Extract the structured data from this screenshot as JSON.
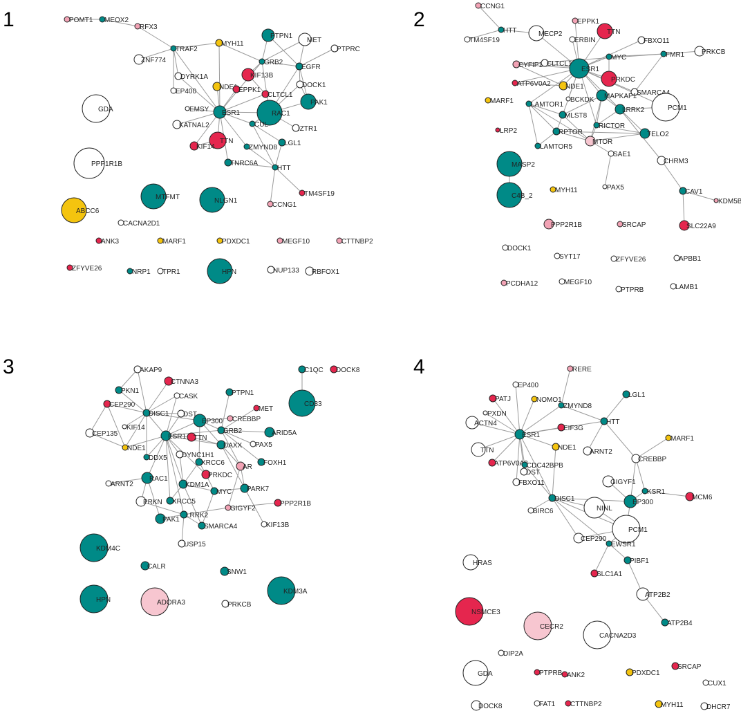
{
  "colors": {
    "teal": "#008a87",
    "red": "#e5264e",
    "pink": "#f2a3b5",
    "lightpink": "#f7c6d0",
    "yellow": "#f4c40f",
    "white": "#ffffff"
  },
  "panels": [
    {
      "number": "1",
      "nodes": [
        {
          "id": "POMT1",
          "c": "pink"
        },
        {
          "id": "MEOX2",
          "c": "teal"
        },
        {
          "id": "RFX3",
          "c": "pink"
        },
        {
          "id": "TRAF2",
          "c": "teal"
        },
        {
          "id": "MYH11",
          "c": "yellow"
        },
        {
          "id": "PTPN1",
          "c": "teal"
        },
        {
          "id": "MET",
          "c": "white"
        },
        {
          "id": "PTPRC",
          "c": "white"
        },
        {
          "id": "ZNF774",
          "c": "white"
        },
        {
          "id": "GRB2",
          "c": "teal"
        },
        {
          "id": "EGFR",
          "c": "teal"
        },
        {
          "id": "DYRK1A",
          "c": "white"
        },
        {
          "id": "KIF13B",
          "c": "red"
        },
        {
          "id": "DOCK1",
          "c": "white"
        },
        {
          "id": "NDE1",
          "c": "yellow"
        },
        {
          "id": "EPPK1",
          "c": "red"
        },
        {
          "id": "CLTCL1",
          "c": "red"
        },
        {
          "id": "EP400",
          "c": "white"
        },
        {
          "id": "PAK1",
          "c": "teal"
        },
        {
          "id": "GDA",
          "c": "white"
        },
        {
          "id": "EMSY",
          "c": "white"
        },
        {
          "id": "ESR1",
          "c": "teal"
        },
        {
          "id": "RAC1",
          "c": "teal"
        },
        {
          "id": "CUL",
          "c": "teal"
        },
        {
          "id": "KATNAL2",
          "c": "white"
        },
        {
          "id": "IZTR1",
          "c": "white"
        },
        {
          "id": "TTN",
          "c": "red"
        },
        {
          "id": "KIF14",
          "c": "red"
        },
        {
          "id": "ZMYND8",
          "c": "teal"
        },
        {
          "id": "LGL1",
          "c": "teal"
        },
        {
          "id": "PPP1R1B",
          "c": "white"
        },
        {
          "id": "TNRC6A",
          "c": "teal"
        },
        {
          "id": "HTT",
          "c": "teal"
        },
        {
          "id": "MTFMT",
          "c": "teal"
        },
        {
          "id": "NLGN1",
          "c": "teal"
        },
        {
          "id": "TM4SF19",
          "c": "red"
        },
        {
          "id": "CCNG1",
          "c": "pink"
        },
        {
          "id": "ABCC6",
          "c": "yellow"
        },
        {
          "id": "CACNA2D1",
          "c": "white"
        },
        {
          "id": "ANK3",
          "c": "red"
        },
        {
          "id": "MARF1",
          "c": "yellow"
        },
        {
          "id": "PDXDC1",
          "c": "yellow"
        },
        {
          "id": "MEGF10",
          "c": "pink"
        },
        {
          "id": "CTTNBP2",
          "c": "pink"
        },
        {
          "id": "ZFYVE26",
          "c": "red"
        },
        {
          "id": "NRP1",
          "c": "teal"
        },
        {
          "id": "TPR1",
          "c": "white"
        },
        {
          "id": "HPN",
          "c": "teal"
        },
        {
          "id": "NUP133",
          "c": "white"
        },
        {
          "id": "RBFOX1",
          "c": "white"
        }
      ]
    },
    {
      "number": "2",
      "nodes": [
        {
          "id": "CCNG1",
          "c": "pink"
        },
        {
          "id": "HTT",
          "c": "teal"
        },
        {
          "id": "TM4SF19",
          "c": "white"
        },
        {
          "id": "MECP2",
          "c": "white"
        },
        {
          "id": "EPPK1",
          "c": "pink"
        },
        {
          "id": "TTN",
          "c": "red"
        },
        {
          "id": "ERBIN",
          "c": "white"
        },
        {
          "id": "FBXO11",
          "c": "white"
        },
        {
          "id": "MYC",
          "c": "teal"
        },
        {
          "id": "FMR1",
          "c": "teal"
        },
        {
          "id": "PRKCB",
          "c": "white"
        },
        {
          "id": "CYFIP1",
          "c": "pink"
        },
        {
          "id": "CLTCL1",
          "c": "white"
        },
        {
          "id": "ESR1",
          "c": "teal"
        },
        {
          "id": "ATP6V0A2",
          "c": "red"
        },
        {
          "id": "NDE1",
          "c": "yellow"
        },
        {
          "id": "PRKDC",
          "c": "red"
        },
        {
          "id": "SMARCA4",
          "c": "white"
        },
        {
          "id": "MARF1",
          "c": "yellow"
        },
        {
          "id": "MAPKAP1",
          "c": "teal"
        },
        {
          "id": "BCKDK",
          "c": "white"
        },
        {
          "id": "LAMTOR1",
          "c": "teal"
        },
        {
          "id": "LRRK2",
          "c": "teal"
        },
        {
          "id": "PCM1",
          "c": "white"
        },
        {
          "id": "MLST8",
          "c": "teal"
        },
        {
          "id": "RICTOR",
          "c": "teal"
        },
        {
          "id": "LRP2",
          "c": "red"
        },
        {
          "id": "RPTOR",
          "c": "teal"
        },
        {
          "id": "TELO2",
          "c": "teal"
        },
        {
          "id": "MTOR",
          "c": "lightpink"
        },
        {
          "id": "LAMTOR5",
          "c": "teal"
        },
        {
          "id": "SAE1",
          "c": "white"
        },
        {
          "id": "CHRM3",
          "c": "white"
        },
        {
          "id": "MASP2",
          "c": "teal"
        },
        {
          "id": "PAX5",
          "c": "white"
        },
        {
          "id": "CAV1",
          "c": "teal"
        },
        {
          "id": "MYH11",
          "c": "yellow"
        },
        {
          "id": "KDM5B",
          "c": "pink"
        },
        {
          "id": "C4B_2",
          "c": "teal"
        },
        {
          "id": "PPP2R1B",
          "c": "pink"
        },
        {
          "id": "SRCAP",
          "c": "pink"
        },
        {
          "id": "SLC22A9",
          "c": "red"
        },
        {
          "id": "DOCK1",
          "c": "white"
        },
        {
          "id": "SYT17",
          "c": "white"
        },
        {
          "id": "ZFYVE26",
          "c": "white"
        },
        {
          "id": "APBB1",
          "c": "white"
        },
        {
          "id": "PCDHA12",
          "c": "pink"
        },
        {
          "id": "MEGF10",
          "c": "white"
        },
        {
          "id": "PTPRB",
          "c": "white"
        },
        {
          "id": "LAMB1",
          "c": "white"
        }
      ]
    },
    {
      "number": "3",
      "nodes": [
        {
          "id": "AKAP9",
          "c": "white"
        },
        {
          "id": "C1QC",
          "c": "teal"
        },
        {
          "id": "DOCK8",
          "c": "red"
        },
        {
          "id": "CTNNA3",
          "c": "red"
        },
        {
          "id": "PKN1",
          "c": "teal"
        },
        {
          "id": "CASK",
          "c": "white"
        },
        {
          "id": "PTPN1",
          "c": "teal"
        },
        {
          "id": "CEP290",
          "c": "red"
        },
        {
          "id": "MET",
          "c": "red"
        },
        {
          "id": "CD33",
          "c": "teal"
        },
        {
          "id": "DISC1",
          "c": "teal"
        },
        {
          "id": "DST",
          "c": "white"
        },
        {
          "id": "EP300",
          "c": "teal"
        },
        {
          "id": "CREBBP",
          "c": "pink"
        },
        {
          "id": "KIF14",
          "c": "white"
        },
        {
          "id": "GRB2",
          "c": "teal"
        },
        {
          "id": "ARID5A",
          "c": "teal"
        },
        {
          "id": "CEP135",
          "c": "white"
        },
        {
          "id": "ESR1",
          "c": "teal"
        },
        {
          "id": "TTN",
          "c": "red"
        },
        {
          "id": "PAX5",
          "c": "white"
        },
        {
          "id": "NDE1",
          "c": "yellow"
        },
        {
          "id": "DAXX",
          "c": "teal"
        },
        {
          "id": "DYNC1H1",
          "c": "white"
        },
        {
          "id": "DDX5",
          "c": "teal"
        },
        {
          "id": "FOXH1",
          "c": "teal"
        },
        {
          "id": "XRCC6",
          "c": "teal"
        },
        {
          "id": "AR",
          "c": "pink"
        },
        {
          "id": "PRKDC",
          "c": "red"
        },
        {
          "id": "RAC1",
          "c": "teal"
        },
        {
          "id": "ARNT2",
          "c": "white"
        },
        {
          "id": "KDM1A",
          "c": "teal"
        },
        {
          "id": "MYC",
          "c": "teal"
        },
        {
          "id": "PARK7",
          "c": "teal"
        },
        {
          "id": "PRKN",
          "c": "white"
        },
        {
          "id": "XRCC5",
          "c": "teal"
        },
        {
          "id": "PPP2R1B",
          "c": "red"
        },
        {
          "id": "GIGYF2",
          "c": "pink"
        },
        {
          "id": "PAK1",
          "c": "teal"
        },
        {
          "id": "LRRK2",
          "c": "teal"
        },
        {
          "id": "SMARCA4",
          "c": "teal"
        },
        {
          "id": "KIF13B",
          "c": "white"
        },
        {
          "id": "USP15",
          "c": "white"
        },
        {
          "id": "KDM4C",
          "c": "teal"
        },
        {
          "id": "CALR",
          "c": "teal"
        },
        {
          "id": "SNW1",
          "c": "teal"
        },
        {
          "id": "KDM3A",
          "c": "teal"
        },
        {
          "id": "HPN",
          "c": "teal"
        },
        {
          "id": "ADORA3",
          "c": "lightpink"
        },
        {
          "id": "PRKCB",
          "c": "white"
        }
      ]
    },
    {
      "number": "4",
      "nodes": [
        {
          "id": "RERE",
          "c": "pink"
        },
        {
          "id": "EP400",
          "c": "white"
        },
        {
          "id": "PATJ",
          "c": "red"
        },
        {
          "id": "NOMO1",
          "c": "yellow"
        },
        {
          "id": "ZMYND8",
          "c": "teal"
        },
        {
          "id": "LGL1",
          "c": "teal"
        },
        {
          "id": "PXDN",
          "c": "white"
        },
        {
          "id": "ACTN4",
          "c": "white"
        },
        {
          "id": "EIF3G",
          "c": "red"
        },
        {
          "id": "HTT",
          "c": "teal"
        },
        {
          "id": "ESR1",
          "c": "teal"
        },
        {
          "id": "MARF1",
          "c": "yellow"
        },
        {
          "id": "TTN",
          "c": "white"
        },
        {
          "id": "NDE1",
          "c": "yellow"
        },
        {
          "id": "ARNT2",
          "c": "white"
        },
        {
          "id": "CREBBP",
          "c": "white"
        },
        {
          "id": "ATP6V0A2",
          "c": "red"
        },
        {
          "id": "CDC42BPB",
          "c": "teal"
        },
        {
          "id": "DST",
          "c": "white"
        },
        {
          "id": "GIGYF1",
          "c": "white"
        },
        {
          "id": "KSR1",
          "c": "teal"
        },
        {
          "id": "MCM6",
          "c": "red"
        },
        {
          "id": "FBXO11",
          "c": "white"
        },
        {
          "id": "EP300",
          "c": "teal"
        },
        {
          "id": "DISC1",
          "c": "teal"
        },
        {
          "id": "NINL",
          "c": "white"
        },
        {
          "id": "BIRC6",
          "c": "white"
        },
        {
          "id": "PCM1",
          "c": "white"
        },
        {
          "id": "CEP290",
          "c": "white"
        },
        {
          "id": "EWSR1",
          "c": "teal"
        },
        {
          "id": "HRAS",
          "c": "white"
        },
        {
          "id": "PIBF1",
          "c": "teal"
        },
        {
          "id": "SLC1A1",
          "c": "red"
        },
        {
          "id": "ATP2B2",
          "c": "white"
        },
        {
          "id": "NSMCE3",
          "c": "red"
        },
        {
          "id": "ATP2B4",
          "c": "teal"
        },
        {
          "id": "CECR2",
          "c": "lightpink"
        },
        {
          "id": "CACNA2D3",
          "c": "white"
        },
        {
          "id": "DIP2A",
          "c": "white"
        },
        {
          "id": "SRCAP",
          "c": "red"
        },
        {
          "id": "GDA",
          "c": "white"
        },
        {
          "id": "PTPRB",
          "c": "red"
        },
        {
          "id": "ANK2",
          "c": "red"
        },
        {
          "id": "PDXDC1",
          "c": "yellow"
        },
        {
          "id": "CUX1",
          "c": "white"
        },
        {
          "id": "DOCK8",
          "c": "white"
        },
        {
          "id": "FAT1",
          "c": "white"
        },
        {
          "id": "CTTNBP2",
          "c": "red"
        },
        {
          "id": "MYH11",
          "c": "yellow"
        },
        {
          "id": "DHCR7",
          "c": "white"
        }
      ]
    }
  ]
}
